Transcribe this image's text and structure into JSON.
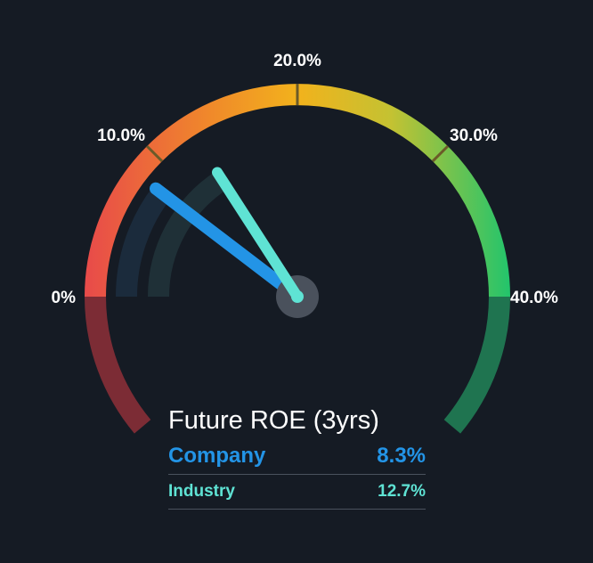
{
  "chart_data": {
    "type": "gauge",
    "title": "Future ROE (3yrs)",
    "range": [
      0,
      40
    ],
    "unit": "%",
    "ticks": [
      {
        "value": 0,
        "label": "0%"
      },
      {
        "value": 10,
        "label": "10.0%"
      },
      {
        "value": 20,
        "label": "20.0%"
      },
      {
        "value": 30,
        "label": "30.0%"
      },
      {
        "value": 40,
        "label": "40.0%"
      }
    ],
    "series": [
      {
        "name": "Company",
        "value": 8.3,
        "label": "8.3%",
        "color": "#2394e6"
      },
      {
        "name": "Industry",
        "value": 12.7,
        "label": "12.7%",
        "color": "#5fe3d4"
      }
    ],
    "colors": {
      "low": "#e84a4a",
      "mid": "#f2a81e",
      "high": "#22c46c",
      "background": "#151b24"
    }
  }
}
